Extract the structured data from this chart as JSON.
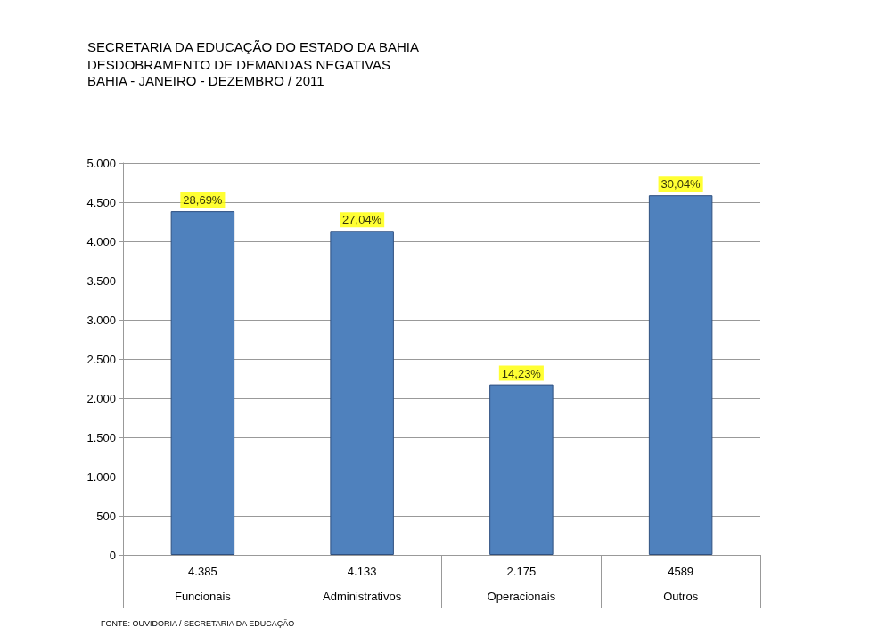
{
  "chart_data": {
    "type": "bar",
    "title": "SECRETARIA DA EDUCAÇÃO DO ESTADO DA BAHIA",
    "subtitle": "DESDOBRAMENTO DE DEMANDAS NEGATIVAS\nBAHIA - JANEIRO - DEZEMBRO / 2011",
    "categories": [
      "Funcionais",
      "Administrativos",
      "Operacionais",
      "Outros"
    ],
    "values": [
      4385,
      4133,
      2175,
      4589
    ],
    "color": "#4f81bd",
    "value_labels": [
      "4.385",
      "4.133",
      "2.175",
      "4589"
    ],
    "ylim": [
      0,
      5000
    ],
    "yticks": [
      0,
      500,
      {
        "value": 1000,
        "label": "1.000"
      },
      {
        "value": 1500,
        "label": "1.500"
      },
      {
        "value": 2000,
        "label": "2.000"
      },
      {
        "value": 2500,
        "label": "2.500"
      },
      {
        "value": 3000,
        "label": "3.000"
      },
      {
        "value": 3500,
        "label": "3.500"
      },
      {
        "value": 4000,
        "label": "4.000"
      },
      {
        "value": 4500,
        "label": "4.500"
      },
      {
        "value": 5000,
        "label": "5.000"
      }
    ],
    "grid": true,
    "annotations": [
      {
        "text": "28,69%",
        "x": "Funcionais",
        "y": 4385
      },
      {
        "text": "27,04%",
        "x": "Administrativos",
        "y": 4133
      },
      {
        "text": "14,23%",
        "x": "Operacionais",
        "y": 2175
      },
      {
        "text": "30,04%",
        "x": "Outros",
        "y": 4589
      },
      "FONTE: OUVIDORIA / SECRETARIA DA EDUCAÇÃO"
    ]
  }
}
